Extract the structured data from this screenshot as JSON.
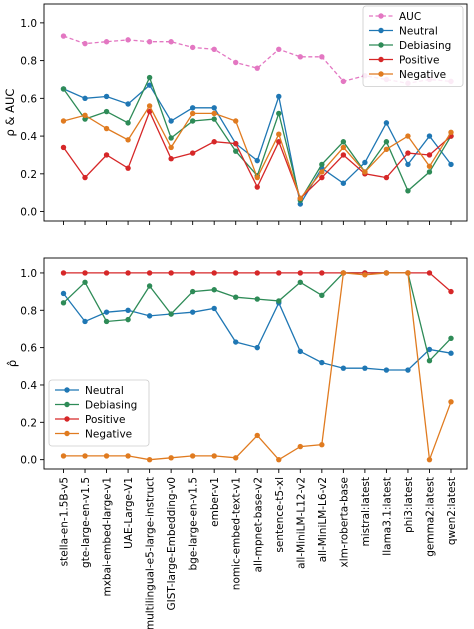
{
  "chart_data": [
    {
      "type": "line",
      "ylabel": "ρ & AUC",
      "ylim": [
        -0.05,
        1.1
      ],
      "yticks": [
        "0.0",
        "0.2",
        "0.4",
        "0.6",
        "0.8",
        "1.0"
      ],
      "legend_position": "top-right",
      "categories": [
        "stella-en-1.5B-v5",
        "gte-large-en-v1.5",
        "mxbai-embed-large-v1",
        "UAE-Large-V1",
        "multilingual-e5-large-instruct",
        "GIST-large-Embedding-v0",
        "bge-large-en-v1.5",
        "ember-v1",
        "nomic-embed-text-v1",
        "all-mpnet-base-v2",
        "sentence-t5-xl",
        "all-MiniLM-L12-v2",
        "all-MiniLM-L6-v2",
        "xlm-roberta-base",
        "mistral:latest",
        "llama3.1:latest",
        "phi3:latest",
        "gemma2:latest",
        "qwen2:latest"
      ],
      "series": [
        {
          "name": "AUC",
          "color": "#e377c2",
          "dashed": true,
          "values": [
            0.93,
            0.89,
            0.9,
            0.91,
            0.9,
            0.9,
            0.87,
            0.86,
            0.79,
            0.76,
            0.86,
            0.82,
            0.82,
            0.69,
            0.72,
            0.7,
            0.68,
            0.7,
            0.69
          ]
        },
        {
          "name": "Neutral",
          "color": "#1f77b4",
          "dashed": false,
          "values": [
            0.65,
            0.6,
            0.61,
            0.57,
            0.67,
            0.48,
            0.55,
            0.55,
            0.36,
            0.27,
            0.61,
            0.04,
            0.23,
            0.15,
            0.26,
            0.47,
            0.25,
            0.4,
            0.25
          ]
        },
        {
          "name": "Debiasing",
          "color": "#2e8b57",
          "dashed": false,
          "values": [
            0.65,
            0.49,
            0.53,
            0.47,
            0.71,
            0.39,
            0.48,
            0.49,
            0.32,
            0.19,
            0.52,
            0.06,
            0.25,
            0.37,
            0.21,
            0.37,
            0.11,
            0.21,
            0.4
          ]
        },
        {
          "name": "Positive",
          "color": "#d62728",
          "dashed": false,
          "values": [
            0.34,
            0.18,
            0.3,
            0.23,
            0.53,
            0.28,
            0.31,
            0.37,
            0.36,
            0.13,
            0.37,
            0.07,
            0.18,
            0.3,
            0.2,
            0.18,
            0.31,
            0.3,
            0.4
          ]
        },
        {
          "name": "Negative",
          "color": "#e07b20",
          "dashed": false,
          "values": [
            0.48,
            0.51,
            0.44,
            0.38,
            0.56,
            0.34,
            0.52,
            0.52,
            0.48,
            0.18,
            0.41,
            0.07,
            0.21,
            0.34,
            0.21,
            0.33,
            0.4,
            0.24,
            0.42
          ]
        }
      ]
    },
    {
      "type": "line",
      "ylabel": "ρ̂",
      "ylim": [
        -0.05,
        1.08
      ],
      "yticks": [
        "0.0",
        "0.2",
        "0.4",
        "0.6",
        "0.8",
        "1.0"
      ],
      "legend_position": "center-left",
      "categories": [
        "stella-en-1.5B-v5",
        "gte-large-en-v1.5",
        "mxbai-embed-large-v1",
        "UAE-Large-V1",
        "multilingual-e5-large-instruct",
        "GIST-large-Embedding-v0",
        "bge-large-en-v1.5",
        "ember-v1",
        "nomic-embed-text-v1",
        "all-mpnet-base-v2",
        "sentence-t5-xl",
        "all-MiniLM-L12-v2",
        "all-MiniLM-L6-v2",
        "xlm-roberta-base",
        "mistral:latest",
        "llama3.1:latest",
        "phi3:latest",
        "gemma2:latest",
        "qwen2:latest"
      ],
      "series": [
        {
          "name": "Neutral",
          "color": "#1f77b4",
          "dashed": false,
          "values": [
            0.89,
            0.74,
            0.79,
            0.8,
            0.77,
            0.78,
            0.79,
            0.81,
            0.63,
            0.6,
            0.84,
            0.58,
            0.52,
            0.49,
            0.49,
            0.48,
            0.48,
            0.59,
            0.57
          ]
        },
        {
          "name": "Debiasing",
          "color": "#2e8b57",
          "dashed": false,
          "values": [
            0.84,
            0.95,
            0.74,
            0.75,
            0.93,
            0.78,
            0.9,
            0.91,
            0.87,
            0.86,
            0.85,
            0.95,
            0.88,
            1.0,
            1.0,
            1.0,
            1.0,
            0.53,
            0.65
          ]
        },
        {
          "name": "Positive",
          "color": "#d62728",
          "dashed": false,
          "values": [
            1.0,
            1.0,
            1.0,
            1.0,
            1.0,
            1.0,
            1.0,
            1.0,
            1.0,
            1.0,
            1.0,
            1.0,
            1.0,
            1.0,
            1.0,
            1.0,
            1.0,
            1.0,
            0.9
          ]
        },
        {
          "name": "Negative",
          "color": "#e07b20",
          "dashed": false,
          "values": [
            0.02,
            0.02,
            0.02,
            0.02,
            0.0,
            0.01,
            0.02,
            0.02,
            0.01,
            0.13,
            0.0,
            0.07,
            0.08,
            1.0,
            0.99,
            1.0,
            1.0,
            0.0,
            0.31
          ]
        }
      ]
    }
  ]
}
